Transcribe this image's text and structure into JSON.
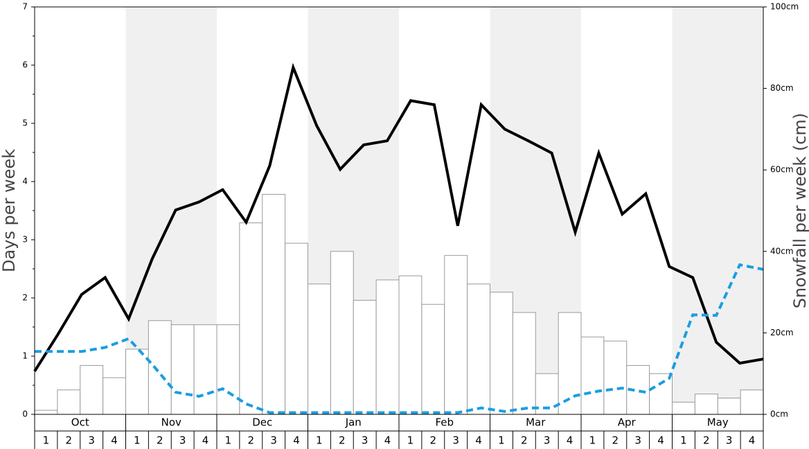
{
  "chart_data": {
    "type": "bar",
    "months": [
      "Oct",
      "Nov",
      "Dec",
      "Jan",
      "Feb",
      "Mar",
      "Apr",
      "May"
    ],
    "week_labels": [
      1,
      2,
      3,
      4
    ],
    "ylabel": "Days per week",
    "y2label": "Snowfall per week (cm)",
    "ylim": [
      0,
      7
    ],
    "yticks": [
      0,
      1,
      2,
      3,
      4,
      5,
      6,
      7
    ],
    "y2lim": [
      0,
      100
    ],
    "y2ticks": [
      {
        "value": 0,
        "label": "0cm"
      },
      {
        "value": 20,
        "label": "20cm"
      },
      {
        "value": 40,
        "label": "40cm"
      },
      {
        "value": 60,
        "label": "60cm"
      },
      {
        "value": 80,
        "label": "80cm"
      },
      {
        "value": 100,
        "label": "100cm"
      }
    ],
    "shade_color": "#f0f0f0",
    "series": [
      {
        "type": "bar",
        "axis": "y2",
        "color": "#ffffff",
        "values": [
          1,
          6,
          12,
          9,
          16,
          23,
          22,
          22,
          22,
          47,
          54,
          42,
          32,
          40,
          28,
          33,
          34,
          27,
          39,
          32,
          30,
          25,
          10,
          25,
          19,
          18,
          12,
          10,
          3,
          5,
          4,
          6
        ]
      },
      {
        "type": "line",
        "color": "#000000",
        "style": "solid",
        "values": [
          0.74,
          1.38,
          2.06,
          2.35,
          1.64,
          2.67,
          3.51,
          3.65,
          3.86,
          3.3,
          4.27,
          5.96,
          4.96,
          4.21,
          4.63,
          4.7,
          5.39,
          5.32,
          3.24,
          5.32,
          4.9,
          4.7,
          4.49,
          3.13,
          4.49,
          3.44,
          3.79,
          2.54,
          2.35,
          1.24,
          0.88,
          0.95
        ]
      },
      {
        "type": "line",
        "color": "#1a9ee0",
        "style": "dashed",
        "values": [
          1.08,
          1.08,
          1.08,
          1.15,
          1.3,
          0.86,
          0.38,
          0.31,
          0.44,
          0.18,
          0.03,
          0.03,
          0.03,
          0.03,
          0.03,
          0.03,
          0.03,
          0.03,
          0.03,
          0.11,
          0.05,
          0.11,
          0.11,
          0.32,
          0.4,
          0.45,
          0.38,
          0.62,
          1.71,
          1.7,
          2.57,
          2.49
        ]
      }
    ]
  }
}
